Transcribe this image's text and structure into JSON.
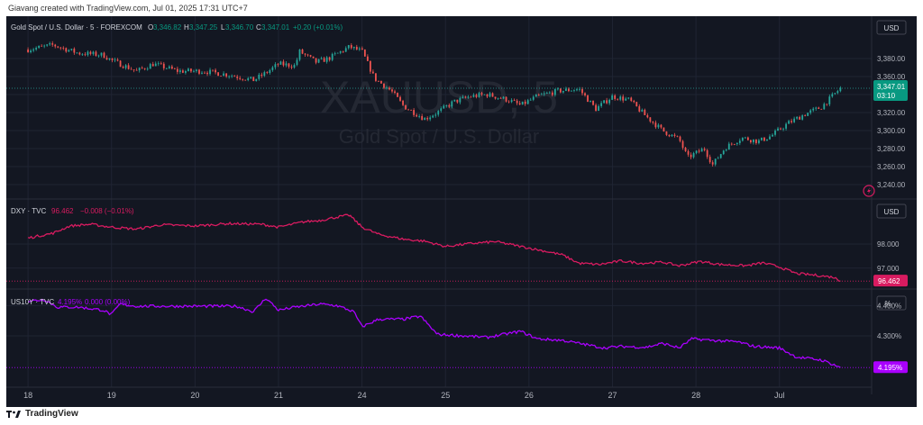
{
  "caption": "Giavang created with TradingView.com, Jul 01, 2025 17:31 UTC+7",
  "footer": {
    "brand": "TradingView",
    "logo_icon": "tradingview-logo-icon"
  },
  "colors": {
    "background": "#131722",
    "grid": "#1f2433",
    "text": "#b2b5be",
    "up": "#26a69a",
    "down": "#ef5350",
    "dxy": "#d81b60",
    "us10y": "#aa00ff",
    "gold_label": "#089981"
  },
  "chart_data": [
    {
      "type": "candlestick",
      "title": "Gold Spot / U.S. Dollar · 5 · FOREXCOM",
      "ohlc": {
        "O": "3,346.82",
        "H": "3,347.25",
        "L": "3,346.70",
        "C": "3,347.01",
        "change": "+0.20 (+0.01%)"
      },
      "watermark": {
        "symbol": "XAUUSD, 5",
        "name": "Gold Spot / U.S. Dollar"
      },
      "currency": "USD",
      "y_ticks": [
        "3,380.00",
        "3,360.00",
        "3,340.00",
        "3,320.00",
        "3,300.00",
        "3,280.00",
        "3,260.00",
        "3,240.00"
      ],
      "y_tick_values": [
        3380,
        3360,
        3340,
        3320,
        3300,
        3280,
        3260,
        3240
      ],
      "ylim": [
        3231,
        3403
      ],
      "last_price": "3,347.01",
      "countdown": "03:10",
      "key_points": [
        [
          0,
          3390
        ],
        [
          0.3,
          3395
        ],
        [
          0.6,
          3386
        ],
        [
          0.9,
          3384
        ],
        [
          1.0,
          3378
        ],
        [
          1.3,
          3366
        ],
        [
          1.5,
          3374
        ],
        [
          1.8,
          3366
        ],
        [
          2.1,
          3366
        ],
        [
          2.4,
          3362
        ],
        [
          2.7,
          3356
        ],
        [
          2.85,
          3364
        ],
        [
          3.0,
          3374
        ],
        [
          3.2,
          3372
        ],
        [
          3.25,
          3388
        ],
        [
          3.45,
          3376
        ],
        [
          3.6,
          3380
        ],
        [
          3.85,
          3393
        ],
        [
          4.0,
          3388
        ],
        [
          4.15,
          3358
        ],
        [
          4.35,
          3344
        ],
        [
          4.5,
          3327
        ],
        [
          4.75,
          3313
        ],
        [
          4.9,
          3320
        ],
        [
          5.1,
          3332
        ],
        [
          5.3,
          3338
        ],
        [
          5.5,
          3340
        ],
        [
          5.75,
          3334
        ],
        [
          5.9,
          3328
        ],
        [
          6.1,
          3338
        ],
        [
          6.35,
          3344
        ],
        [
          6.6,
          3346
        ],
        [
          6.8,
          3324
        ],
        [
          7.0,
          3338
        ],
        [
          7.2,
          3334
        ],
        [
          7.4,
          3316
        ],
        [
          7.6,
          3300
        ],
        [
          7.8,
          3290
        ],
        [
          7.9,
          3270
        ],
        [
          8.1,
          3280
        ],
        [
          8.2,
          3262
        ],
        [
          8.35,
          3281
        ],
        [
          8.55,
          3292
        ],
        [
          8.75,
          3288
        ],
        [
          8.9,
          3294
        ],
        [
          9.1,
          3308
        ],
        [
          9.3,
          3318
        ],
        [
          9.5,
          3326
        ],
        [
          9.6,
          3335
        ],
        [
          9.73,
          3347
        ]
      ]
    },
    {
      "type": "line",
      "title": "DXY · TVC",
      "value": "96.462",
      "change": "−0.008 (−0.01%)",
      "currency": "USD",
      "y_ticks": [
        "98.000",
        "97.000"
      ],
      "y_tick_values": [
        98,
        97
      ],
      "ylim": [
        96.17,
        99.57
      ],
      "last_value": "96.462",
      "key_points": [
        [
          0,
          98.25
        ],
        [
          0.3,
          98.45
        ],
        [
          0.5,
          98.75
        ],
        [
          0.75,
          98.82
        ],
        [
          1.0,
          98.7
        ],
        [
          1.3,
          98.62
        ],
        [
          1.6,
          98.8
        ],
        [
          2.0,
          98.75
        ],
        [
          2.4,
          98.85
        ],
        [
          2.8,
          98.82
        ],
        [
          3.0,
          98.7
        ],
        [
          3.3,
          98.92
        ],
        [
          3.5,
          98.98
        ],
        [
          3.7,
          99.12
        ],
        [
          3.85,
          99.2
        ],
        [
          4.0,
          98.7
        ],
        [
          4.2,
          98.4
        ],
        [
          4.5,
          98.2
        ],
        [
          4.75,
          98.12
        ],
        [
          5.0,
          97.9
        ],
        [
          5.3,
          98.02
        ],
        [
          5.6,
          98.1
        ],
        [
          5.9,
          97.9
        ],
        [
          6.2,
          97.7
        ],
        [
          6.4,
          97.55
        ],
        [
          6.6,
          97.2
        ],
        [
          6.85,
          97.15
        ],
        [
          7.1,
          97.3
        ],
        [
          7.35,
          97.2
        ],
        [
          7.6,
          97.25
        ],
        [
          7.8,
          97.1
        ],
        [
          8.05,
          97.28
        ],
        [
          8.3,
          97.15
        ],
        [
          8.6,
          97.1
        ],
        [
          8.8,
          97.22
        ],
        [
          9.0,
          97.05
        ],
        [
          9.2,
          96.78
        ],
        [
          9.45,
          96.7
        ],
        [
          9.65,
          96.62
        ],
        [
          9.73,
          96.462
        ]
      ]
    },
    {
      "type": "line",
      "title": "US10Y · TVC",
      "value": "4.195%",
      "change": "0.000 (0.00%)",
      "unit": "%",
      "y_ticks": [
        "4.400%",
        "4.300%"
      ],
      "y_tick_values": [
        4.4,
        4.3
      ],
      "ylim": [
        4.13,
        4.44
      ],
      "last_value": "4.195%",
      "key_points": [
        [
          0,
          4.415
        ],
        [
          0.2,
          4.42
        ],
        [
          0.35,
          4.395
        ],
        [
          0.6,
          4.395
        ],
        [
          0.9,
          4.385
        ],
        [
          1.0,
          4.37
        ],
        [
          1.1,
          4.405
        ],
        [
          1.3,
          4.398
        ],
        [
          2.0,
          4.398
        ],
        [
          2.5,
          4.398
        ],
        [
          2.7,
          4.38
        ],
        [
          2.85,
          4.425
        ],
        [
          3.0,
          4.385
        ],
        [
          3.2,
          4.395
        ],
        [
          3.5,
          4.405
        ],
        [
          3.7,
          4.4
        ],
        [
          3.9,
          4.38
        ],
        [
          4.0,
          4.33
        ],
        [
          4.2,
          4.355
        ],
        [
          4.5,
          4.355
        ],
        [
          4.7,
          4.365
        ],
        [
          4.9,
          4.305
        ],
        [
          5.2,
          4.3
        ],
        [
          5.5,
          4.295
        ],
        [
          5.7,
          4.305
        ],
        [
          5.9,
          4.315
        ],
        [
          6.1,
          4.29
        ],
        [
          6.4,
          4.285
        ],
        [
          6.7,
          4.27
        ],
        [
          6.9,
          4.26
        ],
        [
          7.1,
          4.265
        ],
        [
          7.4,
          4.262
        ],
        [
          7.6,
          4.275
        ],
        [
          7.8,
          4.26
        ],
        [
          7.95,
          4.29
        ],
        [
          8.2,
          4.285
        ],
        [
          8.5,
          4.28
        ],
        [
          8.7,
          4.265
        ],
        [
          9.0,
          4.26
        ],
        [
          9.2,
          4.23
        ],
        [
          9.5,
          4.22
        ],
        [
          9.65,
          4.205
        ],
        [
          9.73,
          4.195
        ]
      ]
    }
  ],
  "x_axis": {
    "labels": [
      "18",
      "19",
      "20",
      "21",
      "24",
      "25",
      "26",
      "27",
      "28",
      "Jul"
    ],
    "positions": [
      0,
      1,
      2,
      3,
      4,
      5,
      6,
      7,
      8,
      9
    ],
    "xlim": [
      -0.26,
      10.05
    ]
  }
}
